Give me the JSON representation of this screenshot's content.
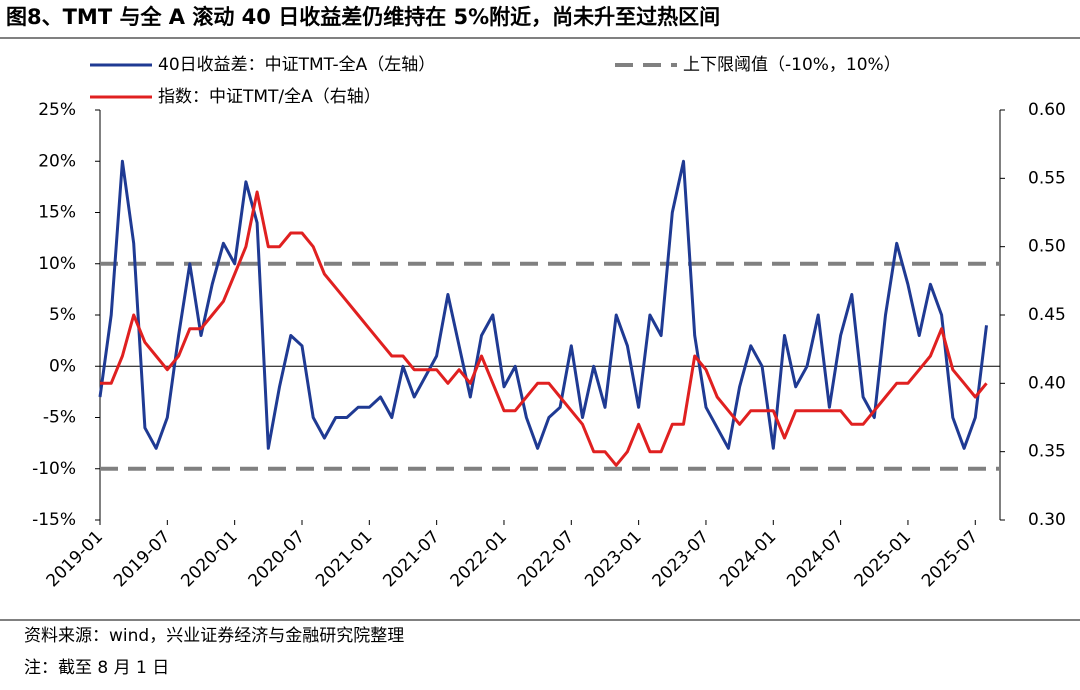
{
  "title": "图8、TMT 与全 A 滚动 40 日收益差仍维持在 5%附近，尚未升至过热区间",
  "chart_data": {
    "type": "line",
    "x": [
      "2019-01",
      "2019-02",
      "2019-03",
      "2019-04",
      "2019-05",
      "2019-06",
      "2019-07",
      "2019-08",
      "2019-09",
      "2019-10",
      "2019-11",
      "2019-12",
      "2020-01",
      "2020-02",
      "2020-03",
      "2020-04",
      "2020-05",
      "2020-06",
      "2020-07",
      "2020-08",
      "2020-09",
      "2020-10",
      "2020-11",
      "2020-12",
      "2021-01",
      "2021-02",
      "2021-03",
      "2021-04",
      "2021-05",
      "2021-06",
      "2021-07",
      "2021-08",
      "2021-09",
      "2021-10",
      "2021-11",
      "2021-12",
      "2022-01",
      "2022-02",
      "2022-03",
      "2022-04",
      "2022-05",
      "2022-06",
      "2022-07",
      "2022-08",
      "2022-09",
      "2022-10",
      "2022-11",
      "2022-12",
      "2023-01",
      "2023-02",
      "2023-03",
      "2023-04",
      "2023-05",
      "2023-06",
      "2023-07",
      "2023-08",
      "2023-09",
      "2023-10",
      "2023-11",
      "2023-12",
      "2024-01",
      "2024-02",
      "2024-03",
      "2024-04",
      "2024-05",
      "2024-06",
      "2024-07",
      "2024-08",
      "2024-09",
      "2024-10",
      "2024-11",
      "2024-12",
      "2025-01",
      "2025-02",
      "2025-03",
      "2025-04",
      "2025-05",
      "2025-06",
      "2025-07",
      "2025-08"
    ],
    "series": [
      {
        "name": "40日收益差：中证TMT-全A（左轴）",
        "color": "#1f3a93",
        "values": [
          -3,
          5,
          20,
          12,
          -6,
          -8,
          -5,
          3,
          10,
          3,
          8,
          12,
          10,
          18,
          14,
          -8,
          -2,
          3,
          2,
          -5,
          -7,
          -5,
          -5,
          -4,
          -4,
          -3,
          -5,
          0,
          -3,
          -1,
          1,
          7,
          2,
          -3,
          3,
          5,
          -2,
          0,
          -5,
          -8,
          -5,
          -4,
          2,
          -5,
          0,
          -4,
          5,
          2,
          -4,
          5,
          3,
          15,
          20,
          3,
          -4,
          -6,
          -8,
          -2,
          2,
          0,
          -8,
          3,
          -2,
          0,
          5,
          -4,
          3,
          7,
          -3,
          -5,
          5,
          12,
          8,
          3,
          8,
          5,
          -5,
          -8,
          -5,
          4
        ]
      },
      {
        "name": "指数：中证TMT/全A（右轴）",
        "color": "#e02020",
        "axis": "y2",
        "values": [
          0.4,
          0.4,
          0.42,
          0.45,
          0.43,
          0.42,
          0.41,
          0.42,
          0.44,
          0.44,
          0.45,
          0.46,
          0.48,
          0.5,
          0.54,
          0.5,
          0.5,
          0.51,
          0.51,
          0.5,
          0.48,
          0.47,
          0.46,
          0.45,
          0.44,
          0.43,
          0.42,
          0.42,
          0.41,
          0.41,
          0.41,
          0.4,
          0.41,
          0.4,
          0.42,
          0.4,
          0.38,
          0.38,
          0.39,
          0.4,
          0.4,
          0.39,
          0.38,
          0.37,
          0.35,
          0.35,
          0.34,
          0.35,
          0.37,
          0.35,
          0.35,
          0.37,
          0.37,
          0.42,
          0.41,
          0.39,
          0.38,
          0.37,
          0.38,
          0.38,
          0.38,
          0.36,
          0.38,
          0.38,
          0.38,
          0.38,
          0.38,
          0.37,
          0.37,
          0.38,
          0.39,
          0.4,
          0.4,
          0.41,
          0.42,
          0.44,
          0.41,
          0.4,
          0.39,
          0.4
        ]
      }
    ],
    "thresholds": {
      "name": "上下限阈值（-10%，10%）",
      "color": "#808080",
      "values": [
        -10,
        10
      ]
    },
    "ylim": [
      -15,
      25
    ],
    "yticks": [
      {
        "value": -15,
        "label": "-15%"
      },
      {
        "value": -10,
        "label": "-10%"
      },
      {
        "value": -5,
        "label": "-5%"
      },
      {
        "value": 0,
        "label": "0%"
      },
      {
        "value": 5,
        "label": "5%"
      },
      {
        "value": 10,
        "label": "10%"
      },
      {
        "value": 15,
        "label": "15%"
      },
      {
        "value": 20,
        "label": "20%"
      },
      {
        "value": 25,
        "label": "25%"
      }
    ],
    "y2lim": [
      0.3,
      0.6
    ],
    "y2ticks": [
      {
        "value": 0.3,
        "label": "0.30"
      },
      0.35,
      {
        "value": 0.4,
        "label": "0.40"
      },
      0.45,
      {
        "value": 0.5,
        "label": "0.50"
      },
      0.55,
      {
        "value": 0.6,
        "label": "0.60"
      }
    ]
  },
  "source": "资料来源：wind，兴业证券经济与金融研究院整理",
  "note": "注：截至 8 月 1 日"
}
